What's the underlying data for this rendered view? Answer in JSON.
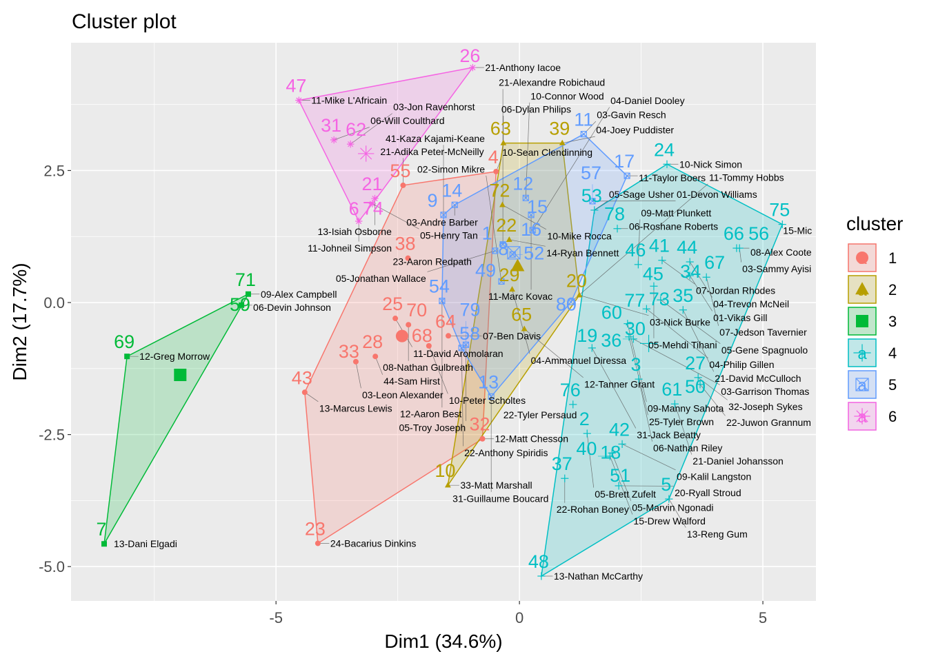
{
  "chart_data": {
    "type": "scatter",
    "title": "Cluster plot",
    "xlabel": "Dim1 (34.6%)",
    "ylabel": "Dim2 (17.7%)",
    "xlim": [
      -9.21,
      6.09
    ],
    "ylim": [
      -5.65,
      4.92
    ],
    "xticks": [
      -5,
      0,
      5
    ],
    "yticks": [
      -5.0,
      -2.5,
      0.0,
      2.5
    ],
    "ytick_labels": [
      "-5.0",
      "-2.5",
      "0.0",
      "2.5"
    ],
    "grid": true,
    "legend": {
      "title": "cluster",
      "position": "right",
      "letter": "a"
    },
    "clusters": [
      {
        "name": "1",
        "color": "#F8766D",
        "shape": "circle",
        "points": [
          {
            "id": "4",
            "label": "10-Sean Clendinning",
            "x": -0.48,
            "y": 2.48
          },
          {
            "id": "55",
            "label": "21-Adika Peter-McNeilly",
            "x": -2.39,
            "y": 2.22
          },
          {
            "id": "38",
            "label": "23-Aaron Redpath",
            "x": -2.29,
            "y": 0.84
          },
          {
            "id": "25",
            "label": "11-David Aromolaran",
            "x": -2.55,
            "y": -0.3
          },
          {
            "id": "70",
            "label": "08-Nathan Gulbreath",
            "x": -2.28,
            "y": -0.42
          },
          {
            "id": "64",
            "label": "07-Ben Davis",
            "x": -1.46,
            "y": -0.63
          },
          {
            "id": "68",
            "label": "10-Peter Scholtes",
            "x": -1.86,
            "y": -0.82
          },
          {
            "id": "28",
            "label": "44-Sam Hirst",
            "x": -2.96,
            "y": -1.02
          },
          {
            "id": "33",
            "label": "03-Leon Alexander",
            "x": -3.36,
            "y": -1.12
          },
          {
            "id": "43",
            "label": "13-Marcus Lewis",
            "x": -4.41,
            "y": -1.7
          },
          {
            "id": "23",
            "label": "24-Bacarius Dinkins",
            "x": -4.14,
            "y": -4.56
          },
          {
            "id": "32",
            "label": "12-Matt Chesson",
            "x": -0.76,
            "y": -2.58
          }
        ]
      },
      {
        "name": "2",
        "color": "#B79F00",
        "shape": "triangle",
        "points": [
          {
            "id": "63",
            "label": "06-Dylan Philips",
            "x": -0.33,
            "y": 3.02
          },
          {
            "id": "39",
            "label": "04-Joey Puddister",
            "x": 0.88,
            "y": 3.02
          },
          {
            "id": "72",
            "label": "10-Mike Rocca",
            "x": -0.35,
            "y": 1.85
          },
          {
            "id": "22",
            "label": "14-Ryan Bennett",
            "x": -0.21,
            "y": 1.19
          },
          {
            "id": "29",
            "label": "04-Ammanuel Diressa",
            "x": -0.15,
            "y": 0.25
          },
          {
            "id": "20",
            "label": "03-Nick Burke",
            "x": 1.23,
            "y": 0.14
          },
          {
            "id": "65",
            "label": "12-Tanner Grant",
            "x": 0.1,
            "y": -0.5
          },
          {
            "id": "10",
            "label": "33-Matt Marshall",
            "x": -1.47,
            "y": -3.46
          }
        ]
      },
      {
        "name": "3",
        "color": "#00BA38",
        "shape": "square",
        "points": [
          {
            "id": "71",
            "label": "09-Alex Campbell",
            "x": -5.57,
            "y": 0.16
          },
          {
            "id": "59",
            "label": "06-Devin Johnson",
            "x": -5.71,
            "y": -0.05
          },
          {
            "id": "69",
            "label": "12-Greg Morrow",
            "x": -8.06,
            "y": -1.02
          },
          {
            "id": "7",
            "label": "13-Dani Elgadi",
            "x": -8.53,
            "y": -4.57
          }
        ]
      },
      {
        "name": "4",
        "color": "#00BFC4",
        "shape": "plus",
        "points": [
          {
            "id": "24",
            "label": "10-Nick Simon",
            "x": 3.03,
            "y": 2.62
          },
          {
            "id": "75",
            "label": "15-Mic",
            "x": 5.4,
            "y": 1.48
          },
          {
            "id": "53",
            "label": "05-Sage Usher",
            "x": 1.54,
            "y": 1.75
          },
          {
            "id": "78",
            "label": "06-Roshane Roberts",
            "x": 2.01,
            "y": 1.4
          },
          {
            "id": "66",
            "label": "08-Alex Coote",
            "x": 4.46,
            "y": 1.03
          },
          {
            "id": "56",
            "label": "03-Sammy Ayisi",
            "x": 4.52,
            "y": 1.03
          },
          {
            "id": "46",
            "label": "09-Matt Plunkett",
            "x": 2.44,
            "y": 0.72
          },
          {
            "id": "41",
            "label": "07-Jordan Rhodes",
            "x": 2.93,
            "y": 0.8
          },
          {
            "id": "44",
            "label": "04-Trevon McNeil",
            "x": 3.5,
            "y": 0.77
          },
          {
            "id": "34",
            "label": "01-Vikas Gill",
            "x": 3.5,
            "y": 0.51
          },
          {
            "id": "67",
            "label": "07-Jedson Tavernier",
            "x": 3.84,
            "y": 0.48
          },
          {
            "id": "45",
            "label": "05-Mehdi Tihani",
            "x": 2.76,
            "y": 0.31
          },
          {
            "id": "73",
            "label": "05-Gene Spagnuolo",
            "x": 2.9,
            "y": 0.05
          },
          {
            "id": "77",
            "label": "04-Philip Gillen",
            "x": 2.61,
            "y": -0.12
          },
          {
            "id": "35",
            "label": "21-David McCulloch",
            "x": 3.36,
            "y": -0.14
          },
          {
            "id": "60",
            "label": "09-Manny Sahota",
            "x": 2.22,
            "y": -0.4
          },
          {
            "id": "30",
            "label": "25-Tyler Brown",
            "x": 2.25,
            "y": -0.65
          },
          {
            "id": "36",
            "label": "03-Garrison Thomas",
            "x": 2.34,
            "y": -0.69
          },
          {
            "id": "19",
            "label": "31-Jack Beatty",
            "x": 1.49,
            "y": -0.86
          },
          {
            "id": "3",
            "label": "06-Nathan Riley",
            "x": 2.45,
            "y": -1.45
          },
          {
            "id": "27",
            "label": "32-Joseph Sykes",
            "x": 3.67,
            "y": -1.42
          },
          {
            "id": "50",
            "label": "22-Juwon Grannum",
            "x": 3.71,
            "y": -1.55
          },
          {
            "id": "61",
            "label": "21-Daniel Johansson",
            "x": 3.19,
            "y": -1.92
          },
          {
            "id": "76",
            "label": "22-Tyler Persaud",
            "x": 1.1,
            "y": -1.93
          },
          {
            "id": "2",
            "label": "05-Brett Zufelt",
            "x": 1.39,
            "y": -2.48
          },
          {
            "id": "42",
            "label": "09-Kalil Langston",
            "x": 2.11,
            "y": -2.68
          },
          {
            "id": "18",
            "label": "05-Marvin Ngonadi",
            "x": 1.9,
            "y": -2.85
          },
          {
            "id": "40",
            "label": "15-Drew Walford",
            "x": 1.86,
            "y": -2.91
          },
          {
            "id": "37",
            "label": "22-Rohan Boney",
            "x": 0.93,
            "y": -3.33
          },
          {
            "id": "51",
            "label": "20-Ryall Stroud",
            "x": 2.04,
            "y": -3.47
          },
          {
            "id": "5",
            "label": "13-Reng Gum",
            "x": 3.07,
            "y": -3.72
          },
          {
            "id": "48",
            "label": "13-Nathan McCarthy",
            "x": 0.45,
            "y": -5.18
          }
        ]
      },
      {
        "name": "5",
        "color": "#619CFF",
        "shape": "square-x",
        "points": [
          {
            "id": "11",
            "label": "03-Gavin Resch",
            "x": 1.32,
            "y": 3.19
          },
          {
            "id": "17",
            "label": "11-Taylor Boers",
            "x": 2.21,
            "y": 2.4
          },
          {
            "id": "57",
            "label": "01-Devon Williams",
            "x": 1.5,
            "y": 1.92
          },
          {
            "id": "12",
            "label": "10-Connor Wood",
            "x": 0.13,
            "y": 1.98
          },
          {
            "id": "14",
            "label": "03-Andre Barber",
            "x": -1.33,
            "y": 1.85
          },
          {
            "id": "9",
            "label": "41-Kaza Kajami-Keane",
            "x": -1.56,
            "y": 1.66
          },
          {
            "id": "15",
            "label": "11-Marc Kovac",
            "x": 0.24,
            "y": 1.66
          },
          {
            "id": "16",
            "label": "04-Daniel Dooley",
            "x": 0.27,
            "y": 1.37
          },
          {
            "id": "1",
            "label": "21-Alexandre Robichaud",
            "x": -0.34,
            "y": 1.1
          },
          {
            "id": "8",
            "label": "05-Jonathan Wallace",
            "x": -0.5,
            "y": 0.98
          },
          {
            "id": "52",
            "label": "",
            "x": -0.14,
            "y": 0.91
          },
          {
            "id": "54",
            "label": "12-Aaron Best",
            "x": -1.59,
            "y": 0.03
          },
          {
            "id": "49",
            "label": "02-Simon Mikre",
            "x": -0.37,
            "y": 0.4
          },
          {
            "id": "58",
            "label": "22-Anthony Spiridis",
            "x": -1.19,
            "y": -0.86
          },
          {
            "id": "80",
            "label": "11-Tommy Hobbs",
            "x": 1.06,
            "y": 0.01
          },
          {
            "id": "13",
            "label": "31-Guillaume Boucard",
            "x": -0.58,
            "y": -1.78
          },
          {
            "id": "79",
            "label": "05-Troy Joseph",
            "x": -1.1,
            "y": -0.8
          }
        ]
      },
      {
        "name": "6",
        "color": "#F564E3",
        "shape": "asterisk",
        "points": [
          {
            "id": "26",
            "label": "21-Anthony Iacoe",
            "x": -0.96,
            "y": 4.45
          },
          {
            "id": "47",
            "label": "11-Mike L'Africain",
            "x": -4.53,
            "y": 3.83
          },
          {
            "id": "31",
            "label": "06-Will Coulthard",
            "x": -3.81,
            "y": 3.08
          },
          {
            "id": "62",
            "label": "03-Jon Ravenhorst",
            "x": -3.47,
            "y": 3.0
          },
          {
            "id": "21",
            "label": "13-Isiah Osborne",
            "x": -2.97,
            "y": 1.97
          },
          {
            "id": "74",
            "label": "05-Henry Tan",
            "x": -3.02,
            "y": 1.87
          },
          {
            "id": "6",
            "label": "11-Johneil Simpson",
            "x": -3.3,
            "y": 1.54
          }
        ]
      }
    ]
  }
}
